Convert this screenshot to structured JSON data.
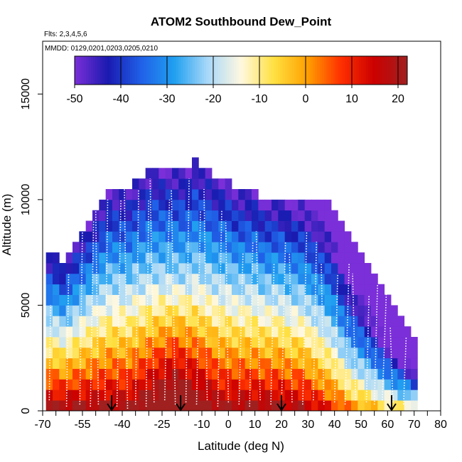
{
  "chart_data": {
    "type": "heatmap",
    "title": "ATOM2 Southbound Dew_Point",
    "flights_label": "Flts: 2,3,4,5,6",
    "dates_label": "MMDD: 0129,0201,0203,0205,0210",
    "xlabel": "Latitude (deg N)",
    "ylabel": "Altitude (m)",
    "xlim": [
      -70,
      80
    ],
    "ylim": [
      0,
      17500
    ],
    "x_ticks": [
      -70,
      -55,
      -40,
      -25,
      -10,
      0,
      10,
      20,
      30,
      40,
      50,
      60,
      70,
      80
    ],
    "x_tick_labels": [
      "-70",
      "-55",
      "-40",
      "-25",
      "-10",
      "0",
      "10",
      "20",
      "30",
      "40",
      "50",
      "60",
      "70",
      "80"
    ],
    "y_ticks": [
      0,
      5000,
      10000,
      15000
    ],
    "y_tick_labels": [
      "0",
      "5000",
      "10000",
      "15000"
    ],
    "colorbar": {
      "min": -50,
      "max": 22,
      "ticks": [
        -50,
        -40,
        -30,
        -20,
        -10,
        0,
        10,
        20
      ],
      "tick_labels": [
        "-50",
        "-40",
        "-30",
        "-20",
        "-10",
        "0",
        "10",
        "20"
      ],
      "colors": [
        "#7b2fd8",
        "#1a1ab0",
        "#2060e8",
        "#20a0f0",
        "#a8d8f8",
        "#fff8e0",
        "#ffe040",
        "#ffa000",
        "#ff3000",
        "#cc0000",
        "#a02020"
      ]
    },
    "grid": false,
    "cell_width_deg": 2.5,
    "cell_height_m": 500,
    "columns": [
      {
        "lat": -67.5,
        "top": 7500,
        "surface": 20,
        "base_offset": 0
      },
      {
        "lat": -65,
        "top": 7500,
        "surface": 20,
        "base_offset": 0
      },
      {
        "lat": -62.5,
        "top": 7000,
        "surface": 20,
        "base_offset": 0
      },
      {
        "lat": -60,
        "top": 7500,
        "surface": 20,
        "base_offset": 0
      },
      {
        "lat": -57.5,
        "top": 8000,
        "surface": 20,
        "base_offset": 0
      },
      {
        "lat": -55,
        "top": 8500,
        "surface": 20,
        "base_offset": 0
      },
      {
        "lat": -52.5,
        "top": 9000,
        "surface": 20,
        "base_offset": 0
      },
      {
        "lat": -50,
        "top": 9500,
        "surface": 20,
        "base_offset": 0
      },
      {
        "lat": -47.5,
        "top": 10000,
        "surface": 20,
        "base_offset": 0
      },
      {
        "lat": -45,
        "top": 10500,
        "surface": 20,
        "base_offset": 0
      },
      {
        "lat": -42.5,
        "top": 10500,
        "surface": 20,
        "base_offset": 0
      },
      {
        "lat": -40,
        "top": 10500,
        "surface": 20,
        "base_offset": 0
      },
      {
        "lat": -37.5,
        "top": 10500,
        "surface": 20,
        "base_offset": 0
      },
      {
        "lat": -35,
        "top": 11000,
        "surface": 20,
        "base_offset": 0
      },
      {
        "lat": -32.5,
        "top": 11000,
        "surface": 20,
        "base_offset": 0
      },
      {
        "lat": -30,
        "top": 11500,
        "surface": 20,
        "base_offset": 0
      },
      {
        "lat": -27.5,
        "top": 11500,
        "surface": 20,
        "base_offset": 0
      },
      {
        "lat": -25,
        "top": 11500,
        "surface": 20,
        "base_offset": 0
      },
      {
        "lat": -22.5,
        "top": 11500,
        "surface": 20,
        "base_offset": 0
      },
      {
        "lat": -20,
        "top": 11500,
        "surface": 20,
        "base_offset": 0
      },
      {
        "lat": -17.5,
        "top": 11500,
        "surface": 20,
        "base_offset": 0
      },
      {
        "lat": -15,
        "top": 11500,
        "surface": 20,
        "base_offset": 0
      },
      {
        "lat": -12.5,
        "top": 12000,
        "surface": 20,
        "base_offset": 0
      },
      {
        "lat": -10,
        "top": 11500,
        "surface": 20,
        "base_offset": 0
      },
      {
        "lat": -7.5,
        "top": 11500,
        "surface": 20,
        "base_offset": 0
      },
      {
        "lat": -5,
        "top": 11000,
        "surface": 20,
        "base_offset": 0
      },
      {
        "lat": -2.5,
        "top": 11000,
        "surface": 20,
        "base_offset": 0
      },
      {
        "lat": 0,
        "top": 11000,
        "surface": 20,
        "base_offset": 0
      },
      {
        "lat": 2.5,
        "top": 10500,
        "surface": 20,
        "base_offset": 0
      },
      {
        "lat": 5,
        "top": 10500,
        "surface": 20,
        "base_offset": 0
      },
      {
        "lat": 7.5,
        "top": 10500,
        "surface": 20,
        "base_offset": 0
      },
      {
        "lat": 10,
        "top": 10500,
        "surface": 20,
        "base_offset": 0
      },
      {
        "lat": 12.5,
        "top": 10000,
        "surface": 20,
        "base_offset": 0
      },
      {
        "lat": 15,
        "top": 10000,
        "surface": 20,
        "base_offset": 0
      },
      {
        "lat": 17.5,
        "top": 10000,
        "surface": 20,
        "base_offset": 0
      },
      {
        "lat": 20,
        "top": 10000,
        "surface": 20,
        "base_offset": 0
      },
      {
        "lat": 22.5,
        "top": 10000,
        "surface": 18,
        "base_offset": 0
      },
      {
        "lat": 25,
        "top": 10000,
        "surface": 18,
        "base_offset": 0
      },
      {
        "lat": 27.5,
        "top": 10000,
        "surface": 18,
        "base_offset": 0
      },
      {
        "lat": 30,
        "top": 10000,
        "surface": 16,
        "base_offset": 0
      },
      {
        "lat": 32.5,
        "top": 10000,
        "surface": 14,
        "base_offset": 0
      },
      {
        "lat": 35,
        "top": 10000,
        "surface": 12,
        "base_offset": 0
      },
      {
        "lat": 37.5,
        "top": 10000,
        "surface": 10,
        "base_offset": 0
      },
      {
        "lat": 40,
        "top": 9500,
        "surface": 8,
        "base_offset": 0
      },
      {
        "lat": 42.5,
        "top": 9000,
        "surface": 5,
        "base_offset": 0
      },
      {
        "lat": 45,
        "top": 8500,
        "surface": 2,
        "base_offset": 0
      },
      {
        "lat": 47.5,
        "top": 8000,
        "surface": 0,
        "base_offset": 0
      },
      {
        "lat": 50,
        "top": 7500,
        "surface": -1,
        "base_offset": 0
      },
      {
        "lat": 52.5,
        "top": 7000,
        "surface": -3,
        "base_offset": 0
      },
      {
        "lat": 55,
        "top": 6500,
        "surface": -5,
        "base_offset": 0
      },
      {
        "lat": 57.5,
        "top": 6000,
        "surface": -7,
        "base_offset": 0
      },
      {
        "lat": 60,
        "top": 5500,
        "surface": -9,
        "base_offset": 0
      },
      {
        "lat": 62.5,
        "top": 5000,
        "surface": -10,
        "base_offset": 0
      },
      {
        "lat": 65,
        "top": 4500,
        "surface": -11,
        "base_offset": 0
      },
      {
        "lat": 67.5,
        "top": 4000,
        "surface": -12,
        "base_offset": 0
      },
      {
        "lat": 70,
        "top": 3500,
        "surface": -13,
        "base_offset": 0
      }
    ],
    "moist_core": {
      "center_lat": -20,
      "half_width_deg": 17,
      "boost_top": 6000
    },
    "profile_lines": [
      {
        "lat": -67.5,
        "bottom": 500,
        "top": 5000,
        "dx": 0.5
      },
      {
        "lat": -61,
        "bottom": 200,
        "top": 6500,
        "dx": 0.8
      },
      {
        "lat": -56,
        "bottom": 300,
        "top": 8500,
        "dx": 1.0
      },
      {
        "lat": -52,
        "bottom": 200,
        "top": 9000,
        "dx": 1.2
      },
      {
        "lat": -49,
        "bottom": 300,
        "top": 9500,
        "dx": -1.0
      },
      {
        "lat": -46.5,
        "bottom": 500,
        "top": 10000,
        "dx": 1.0
      },
      {
        "lat": -42,
        "bottom": 200,
        "top": 10000,
        "dx": 1.5
      },
      {
        "lat": -38,
        "bottom": 100,
        "top": 10500,
        "dx": -1.2
      },
      {
        "lat": -35,
        "bottom": 300,
        "top": 10500,
        "dx": 1.2
      },
      {
        "lat": -31,
        "bottom": 200,
        "top": 10000,
        "dx": 1.0
      },
      {
        "lat": -28,
        "bottom": 400,
        "top": 11000,
        "dx": -1.5
      },
      {
        "lat": -24,
        "bottom": 500,
        "top": 10000,
        "dx": 1.8
      },
      {
        "lat": -20,
        "bottom": 300,
        "top": 10500,
        "dx": -1.5
      },
      {
        "lat": -16,
        "bottom": 400,
        "top": 11000,
        "dx": 1.2
      },
      {
        "lat": -12,
        "bottom": 300,
        "top": 9500,
        "dx": 1.5
      },
      {
        "lat": -8,
        "bottom": 500,
        "top": 10500,
        "dx": -1.2
      },
      {
        "lat": -4,
        "bottom": 200,
        "top": 9500,
        "dx": 1.5
      },
      {
        "lat": 0,
        "bottom": 400,
        "top": 9000,
        "dx": -1.0
      },
      {
        "lat": 4,
        "bottom": 300,
        "top": 7500,
        "dx": 1.5
      },
      {
        "lat": 8,
        "bottom": 200,
        "top": 8000,
        "dx": 1.2
      },
      {
        "lat": 12,
        "bottom": 500,
        "top": 8500,
        "dx": -1.5
      },
      {
        "lat": 16,
        "bottom": 300,
        "top": 7000,
        "dx": 1.2
      },
      {
        "lat": 20,
        "bottom": 200,
        "top": 8000,
        "dx": 1.5
      },
      {
        "lat": 24,
        "bottom": 400,
        "top": 7500,
        "dx": -1.0
      },
      {
        "lat": 28,
        "bottom": 300,
        "top": 8500,
        "dx": 1.5
      },
      {
        "lat": 32,
        "bottom": 500,
        "top": 8000,
        "dx": 1.2
      },
      {
        "lat": 36,
        "bottom": 300,
        "top": 7000,
        "dx": -1.0
      },
      {
        "lat": 40,
        "bottom": 400,
        "top": 6500,
        "dx": 1.2
      },
      {
        "lat": 44,
        "bottom": 300,
        "top": 7000,
        "dx": 1.5
      },
      {
        "lat": 48,
        "bottom": 500,
        "top": 6500,
        "dx": -1.2
      },
      {
        "lat": 52,
        "bottom": 400,
        "top": 5500,
        "dx": 1.0
      },
      {
        "lat": 55,
        "bottom": 300,
        "top": 6000,
        "dx": 1.2
      },
      {
        "lat": 58,
        "bottom": 500,
        "top": 5500,
        "dx": 1.5
      },
      {
        "lat": 62,
        "bottom": 400,
        "top": 4000,
        "dx": -1.0
      },
      {
        "lat": 66,
        "bottom": 300,
        "top": 3500,
        "dx": 1.0
      }
    ],
    "annotations": [
      {
        "type": "arrow",
        "lat": -44,
        "label": "down-arrow"
      },
      {
        "type": "arrow",
        "lat": -18,
        "label": "down-arrow"
      },
      {
        "type": "arrow",
        "lat": 20,
        "label": "down-arrow"
      },
      {
        "type": "arrow",
        "lat": 61.5,
        "label": "down-arrow"
      }
    ]
  }
}
